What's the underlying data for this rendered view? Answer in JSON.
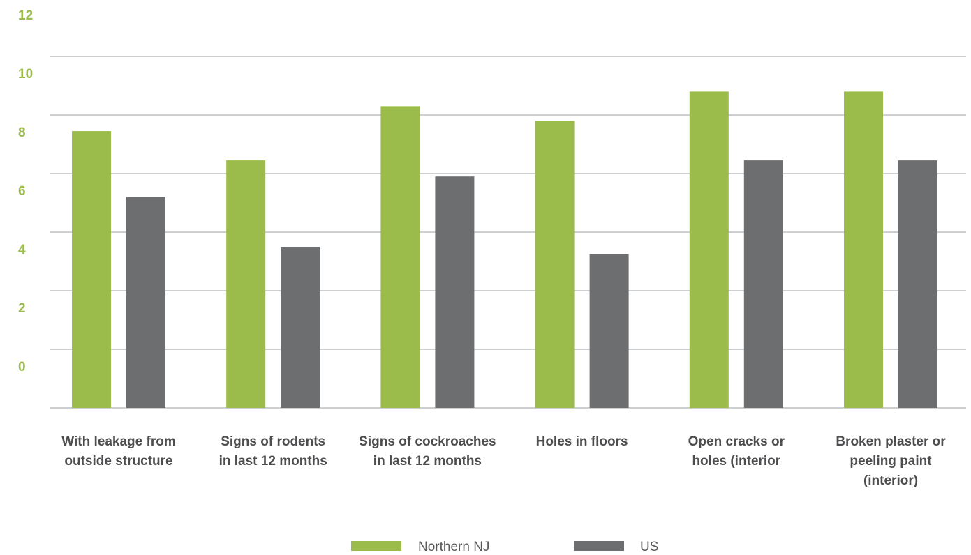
{
  "chart_data": {
    "type": "bar",
    "categories": [
      [
        "With leakage from",
        "outside structure"
      ],
      [
        "Signs of rodents",
        "in last 12 months"
      ],
      [
        "Signs of cockroaches",
        "in last 12 months"
      ],
      [
        "Holes in floors"
      ],
      [
        "Open cracks or",
        "holes (interior"
      ],
      [
        "Broken plaster or",
        "peeling paint",
        "(interior)"
      ]
    ],
    "series": [
      {
        "name": "Northern NJ",
        "color": "#9bbb4a",
        "values": [
          9.45,
          8.45,
          10.3,
          9.8,
          10.8,
          10.8
        ]
      },
      {
        "name": "US",
        "color": "#6d6e70",
        "values": [
          7.2,
          5.5,
          7.9,
          5.25,
          8.45,
          8.45
        ]
      }
    ],
    "y_ticks": [
      "12",
      "10",
      "8",
      "6",
      "4",
      "2",
      "0"
    ],
    "ylim": [
      0,
      14
    ],
    "grid": true,
    "legend_position": "bottom-center",
    "tick_color": "#9bbb4a"
  }
}
